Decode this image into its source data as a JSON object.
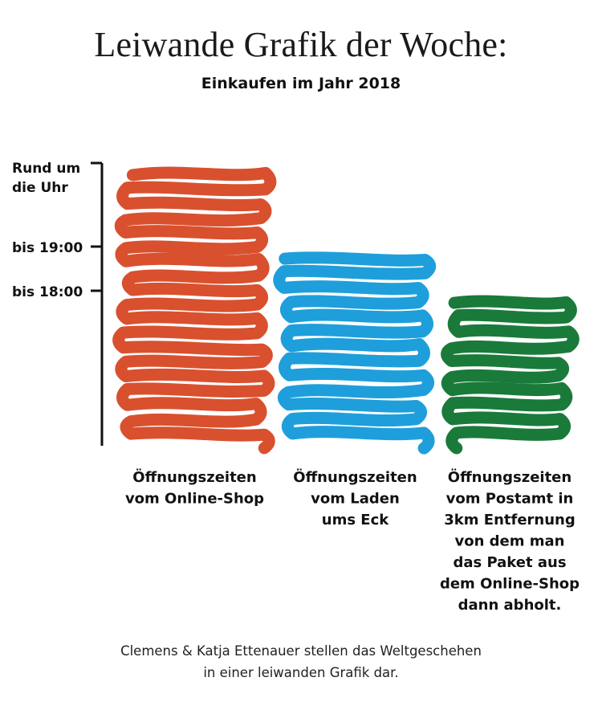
{
  "title": "Leiwande Grafik der Woche:",
  "subtitle": "Einkaufen im Jahr 2018",
  "footer": {
    "line1": "Clemens & Katja Ettenauer stellen das Weltgeschehen",
    "line2": "in einer leiwanden Grafik dar."
  },
  "chart_data": {
    "type": "bar",
    "title": "Einkaufen im Jahr 2018",
    "y_axis_ticks": [
      {
        "label": [
          "Rund um",
          "die Uhr"
        ],
        "level": "24h"
      },
      {
        "label": [
          "bis 19:00"
        ],
        "level": "19:00"
      },
      {
        "label": [
          "bis 18:00"
        ],
        "level": "18:00"
      }
    ],
    "bars": [
      {
        "label": [
          "Öffnungszeiten",
          "vom Online-Shop"
        ],
        "value": "Rund um die Uhr",
        "color": "#d9502f"
      },
      {
        "label": [
          "Öffnungszeiten",
          "vom Laden",
          "ums Eck"
        ],
        "value": "bis 19:00",
        "color": "#1e9fdb"
      },
      {
        "label": [
          "Öffnungszeiten",
          "vom Postamt in",
          "3km Entfernung",
          "von dem man",
          "das Paket aus",
          "dem Online-Shop",
          "dann abholt."
        ],
        "value": "bis 18:00",
        "color": "#1a7a3a"
      }
    ],
    "grid": false,
    "legend": "none"
  }
}
